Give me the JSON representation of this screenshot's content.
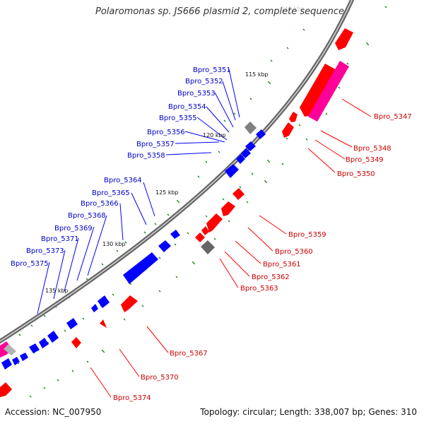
{
  "map": {
    "title": "Polaromonas sp. JS666 plasmid 2, complete sequence",
    "accession_label": "Accession: NC_007950",
    "summary_label": "Topology: circular; Length: 338,007 bp; Genes: 310",
    "backbone_color": "#808080",
    "colors": {
      "forward_strand": "#ff0000",
      "reverse_strand": "#0000ff",
      "rna_or_other": "#ff0099",
      "pseudo_or_misc": "#808080",
      "forward_label": "#cc0000",
      "reverse_label": "#0000cc",
      "tick": "#007700"
    },
    "axis_labels": [
      "115 kbp",
      "120 kbp",
      "125 kbp",
      "130 kbp",
      "135 kbp"
    ],
    "forward_gene_labels": [
      "Bpro_5347",
      "Bpro_5348",
      "Bpro_5349",
      "Bpro_5350",
      "Bpro_5359",
      "Bpro_5360",
      "Bpro_5361",
      "Bpro_5362",
      "Bpro_5363",
      "Bpro_5367",
      "Bpro_5370",
      "Bpro_5374"
    ],
    "reverse_gene_labels": [
      "Bpro_5351",
      "Bpro_5352",
      "Bpro_5353",
      "Bpro_5354",
      "Bpro_5355",
      "Bpro_5356",
      "Bpro_5357",
      "Bpro_5358",
      "Bpro_5364",
      "Bpro_5365",
      "Bpro_5366",
      "Bpro_5368",
      "Bpro_5369",
      "Bpro_5371",
      "Bpro_5373",
      "Bpro_5375"
    ]
  }
}
